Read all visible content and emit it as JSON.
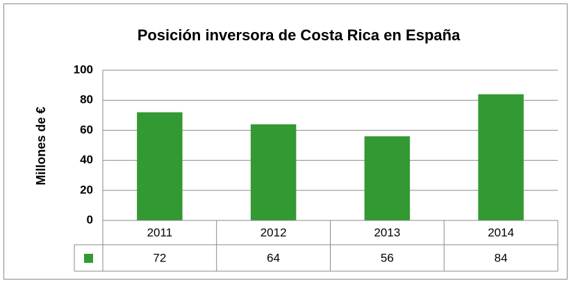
{
  "chart_data": {
    "type": "bar",
    "title": "Posición inversora de Costa Rica en España",
    "y_label": "Millones de €",
    "categories": [
      "2011",
      "2012",
      "2013",
      "2014"
    ],
    "values": [
      72,
      64,
      56,
      84
    ],
    "color": "#339933",
    "ylim": [
      0,
      100
    ],
    "yticks": [
      0,
      20,
      40,
      60,
      80,
      100
    ],
    "grid": true
  }
}
